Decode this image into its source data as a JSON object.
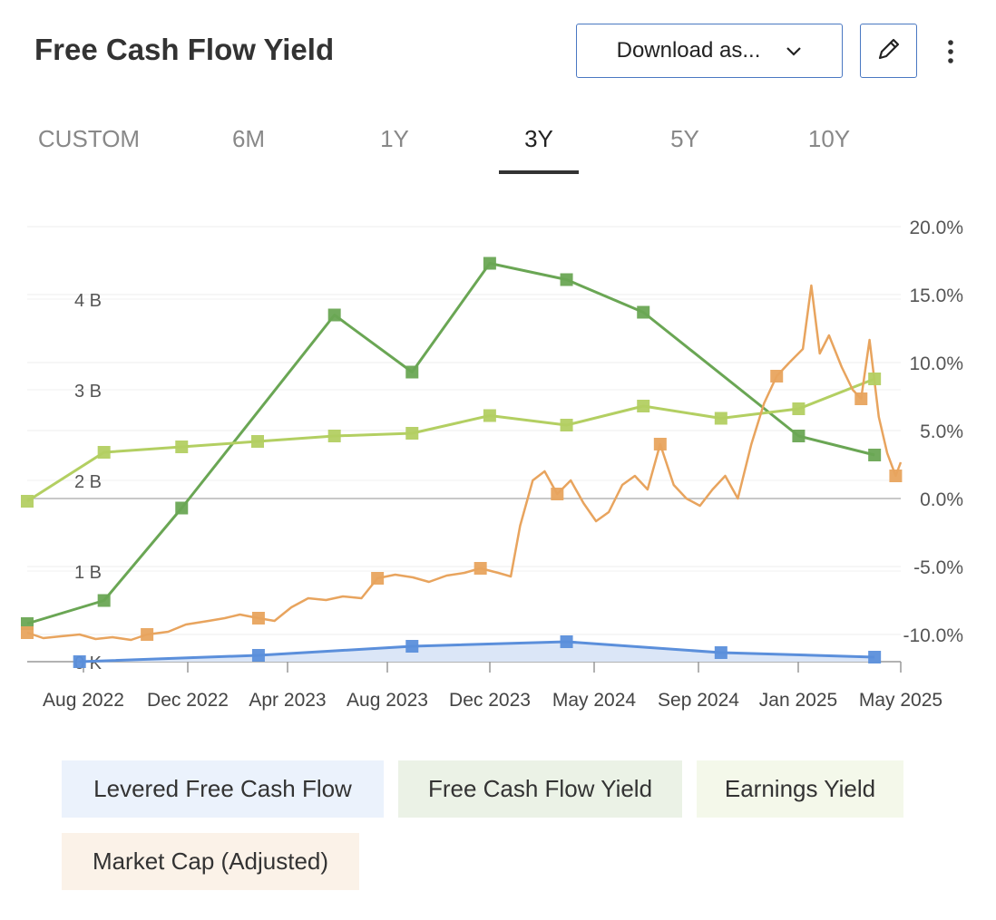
{
  "title": "Free Cash Flow Yield",
  "toolbar": {
    "download_label": "Download as...",
    "edit_icon": "pencil-icon",
    "more_icon": "more-vertical-icon"
  },
  "tabs": [
    {
      "label": "CUSTOM",
      "active": false
    },
    {
      "label": "6M",
      "active": false
    },
    {
      "label": "1Y",
      "active": false
    },
    {
      "label": "3Y",
      "active": true
    },
    {
      "label": "5Y",
      "active": false
    },
    {
      "label": "10Y",
      "active": false
    }
  ],
  "chart_data": {
    "type": "line",
    "x_ticks": [
      "Aug 2022",
      "Dec 2022",
      "Apr 2023",
      "Aug 2023",
      "Dec 2023",
      "May 2024",
      "Sep 2024",
      "Jan 2025",
      "May 2025"
    ],
    "x_range": [
      "2022-07-01",
      "2025-05-01"
    ],
    "y_left": {
      "ticks": [
        "0 K",
        "1 B",
        "2 B",
        "3 B",
        "4 B"
      ],
      "range": [
        0,
        4.8
      ],
      "unit": "B"
    },
    "y_right": {
      "ticks": [
        "-10.0%",
        "-5.0%",
        "0.0%",
        "5.0%",
        "10.0%",
        "15.0%",
        "20.0%"
      ],
      "range": [
        -11,
        21
      ],
      "unit": "%"
    },
    "grid": true,
    "series": [
      {
        "name": "Levered Free Cash Flow",
        "axis": "left",
        "color": "#5b8fdb",
        "fill": "#dbe6f7",
        "area": true,
        "points": [
          {
            "x": "2022-09-01",
            "y": 0.0
          },
          {
            "x": "2023-04-01",
            "y": 0.07
          },
          {
            "x": "2023-09-30",
            "y": 0.17
          },
          {
            "x": "2024-03-31",
            "y": 0.22
          },
          {
            "x": "2024-09-30",
            "y": 0.1
          },
          {
            "x": "2025-03-31",
            "y": 0.05
          }
        ]
      },
      {
        "name": "Free Cash Flow Yield",
        "axis": "right",
        "color": "#6aa654",
        "points": [
          {
            "x": "2022-07-01",
            "y": -9.2
          },
          {
            "x": "2022-09-30",
            "y": -7.5
          },
          {
            "x": "2022-12-31",
            "y": -0.7
          },
          {
            "x": "2023-06-30",
            "y": 13.5
          },
          {
            "x": "2023-09-30",
            "y": 9.3
          },
          {
            "x": "2023-12-31",
            "y": 17.3
          },
          {
            "x": "2024-03-31",
            "y": 16.1
          },
          {
            "x": "2024-06-30",
            "y": 13.7
          },
          {
            "x": "2024-12-31",
            "y": 4.6
          },
          {
            "x": "2025-03-31",
            "y": 3.2
          }
        ]
      },
      {
        "name": "Earnings Yield",
        "axis": "right",
        "color": "#b3cf62",
        "points": [
          {
            "x": "2022-07-01",
            "y": -0.2
          },
          {
            "x": "2022-09-30",
            "y": 3.4
          },
          {
            "x": "2022-12-31",
            "y": 3.8
          },
          {
            "x": "2023-03-31",
            "y": 4.2
          },
          {
            "x": "2023-06-30",
            "y": 4.6
          },
          {
            "x": "2023-09-30",
            "y": 4.8
          },
          {
            "x": "2023-12-31",
            "y": 6.1
          },
          {
            "x": "2024-03-31",
            "y": 5.4
          },
          {
            "x": "2024-06-30",
            "y": 6.8
          },
          {
            "x": "2024-09-30",
            "y": 5.9
          },
          {
            "x": "2024-12-31",
            "y": 6.6
          },
          {
            "x": "2025-03-31",
            "y": 8.8
          }
        ]
      },
      {
        "name": "Market Cap (Adjusted)",
        "axis": "left",
        "color": "#e8a45e",
        "points": [
          {
            "x": "2022-07-01",
            "y": 0.32
          },
          {
            "x": "2022-07-20",
            "y": 0.26
          },
          {
            "x": "2022-08-10",
            "y": 0.28
          },
          {
            "x": "2022-09-01",
            "y": 0.3
          },
          {
            "x": "2022-09-20",
            "y": 0.25
          },
          {
            "x": "2022-10-10",
            "y": 0.27
          },
          {
            "x": "2022-11-01",
            "y": 0.24
          },
          {
            "x": "2022-11-20",
            "y": 0.3
          },
          {
            "x": "2022-12-15",
            "y": 0.33
          },
          {
            "x": "2023-01-05",
            "y": 0.41
          },
          {
            "x": "2023-02-01",
            "y": 0.45
          },
          {
            "x": "2023-02-20",
            "y": 0.48
          },
          {
            "x": "2023-03-10",
            "y": 0.52
          },
          {
            "x": "2023-04-01",
            "y": 0.48
          },
          {
            "x": "2023-04-20",
            "y": 0.45
          },
          {
            "x": "2023-05-10",
            "y": 0.6
          },
          {
            "x": "2023-05-30",
            "y": 0.7
          },
          {
            "x": "2023-06-20",
            "y": 0.68
          },
          {
            "x": "2023-07-10",
            "y": 0.72
          },
          {
            "x": "2023-08-01",
            "y": 0.7
          },
          {
            "x": "2023-08-20",
            "y": 0.92
          },
          {
            "x": "2023-09-10",
            "y": 0.96
          },
          {
            "x": "2023-10-01",
            "y": 0.93
          },
          {
            "x": "2023-10-20",
            "y": 0.88
          },
          {
            "x": "2023-11-10",
            "y": 0.95
          },
          {
            "x": "2023-12-01",
            "y": 0.98
          },
          {
            "x": "2023-12-20",
            "y": 1.03
          },
          {
            "x": "2024-01-10",
            "y": 0.98
          },
          {
            "x": "2024-01-25",
            "y": 0.94
          },
          {
            "x": "2024-02-05",
            "y": 1.5
          },
          {
            "x": "2024-02-20",
            "y": 2.0
          },
          {
            "x": "2024-03-05",
            "y": 2.1
          },
          {
            "x": "2024-03-20",
            "y": 1.85
          },
          {
            "x": "2024-04-05",
            "y": 2.0
          },
          {
            "x": "2024-04-20",
            "y": 1.75
          },
          {
            "x": "2024-05-05",
            "y": 1.55
          },
          {
            "x": "2024-05-20",
            "y": 1.65
          },
          {
            "x": "2024-06-05",
            "y": 1.95
          },
          {
            "x": "2024-06-20",
            "y": 2.05
          },
          {
            "x": "2024-07-05",
            "y": 1.9
          },
          {
            "x": "2024-07-20",
            "y": 2.4
          },
          {
            "x": "2024-08-05",
            "y": 1.95
          },
          {
            "x": "2024-08-20",
            "y": 1.8
          },
          {
            "x": "2024-09-05",
            "y": 1.72
          },
          {
            "x": "2024-09-20",
            "y": 1.9
          },
          {
            "x": "2024-10-05",
            "y": 2.05
          },
          {
            "x": "2024-10-20",
            "y": 1.8
          },
          {
            "x": "2024-11-05",
            "y": 2.4
          },
          {
            "x": "2024-11-20",
            "y": 2.85
          },
          {
            "x": "2024-12-05",
            "y": 3.15
          },
          {
            "x": "2024-12-20",
            "y": 3.3
          },
          {
            "x": "2025-01-05",
            "y": 3.45
          },
          {
            "x": "2025-01-15",
            "y": 4.15
          },
          {
            "x": "2025-01-25",
            "y": 3.4
          },
          {
            "x": "2025-02-05",
            "y": 3.6
          },
          {
            "x": "2025-02-20",
            "y": 3.25
          },
          {
            "x": "2025-03-05",
            "y": 3.0
          },
          {
            "x": "2025-03-15",
            "y": 2.9
          },
          {
            "x": "2025-03-25",
            "y": 3.55
          },
          {
            "x": "2025-04-05",
            "y": 2.7
          },
          {
            "x": "2025-04-15",
            "y": 2.3
          },
          {
            "x": "2025-04-25",
            "y": 2.05
          },
          {
            "x": "2025-05-01",
            "y": 2.2
          }
        ]
      }
    ]
  },
  "legend": [
    {
      "label": "Levered Free Cash Flow",
      "bg": "#ebf2fc"
    },
    {
      "label": "Free Cash Flow Yield",
      "bg": "#ebf2e6"
    },
    {
      "label": "Earnings Yield",
      "bg": "#f4f8ea"
    },
    {
      "label": "Market Cap (Adjusted)",
      "bg": "#fbf2e8"
    }
  ]
}
